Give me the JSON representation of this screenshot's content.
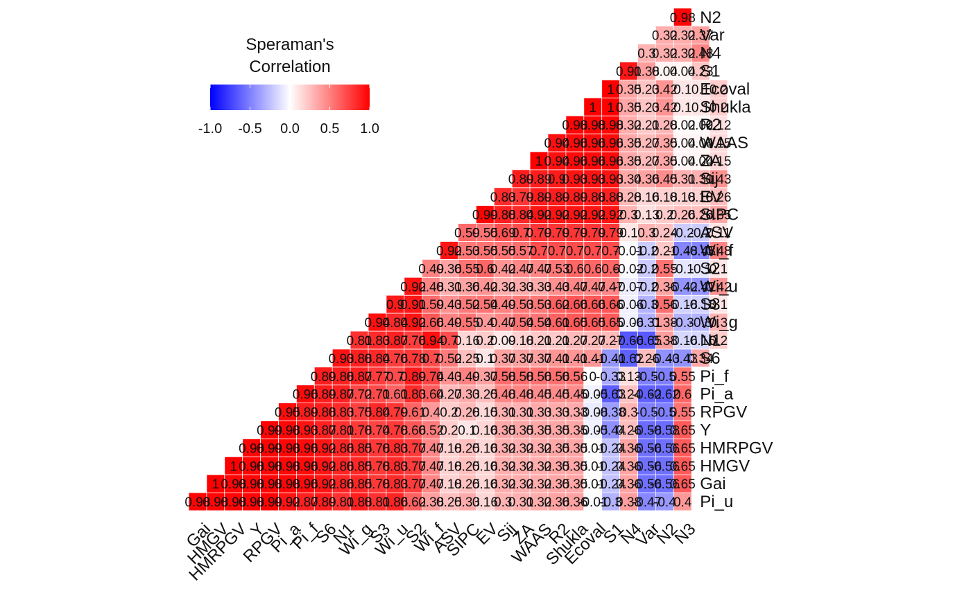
{
  "chart_data": {
    "type": "heatmap",
    "title": "",
    "xlabel": "",
    "ylabel": "",
    "layout": "lower-triangle",
    "grid": false,
    "variables": [
      "Gai",
      "HMGV",
      "HMRPGV",
      "Y",
      "RPGV",
      "Pi_a",
      "Pi_f",
      "S6",
      "N1",
      "Wi_g",
      "S3",
      "Wi_u",
      "S2",
      "Wi_f",
      "ASV",
      "SIPC",
      "EV",
      "Sij",
      "ZA",
      "WAAS",
      "R2",
      "Shukla",
      "Ecoval",
      "S1",
      "N4",
      "Var",
      "N2",
      "N3"
    ],
    "x_tick_labels": [
      "Gai",
      "HMGV",
      "HMRPGV",
      "Y",
      "RPGV",
      "Pi_a",
      "Pi_f",
      "S6",
      "N1",
      "Wi_g",
      "S3",
      "Wi_u",
      "S2",
      "Wi_f",
      "ASV",
      "SIPC",
      "EV",
      "Sij",
      "ZA",
      "WAAS",
      "R2",
      "Shukla",
      "Ecoval",
      "S1",
      "N4",
      "Var",
      "N2",
      "N3"
    ],
    "y_tick_labels": [
      "Pi_u",
      "Gai",
      "HMGV",
      "HMRPGV",
      "Y",
      "RPGV",
      "Pi_a",
      "Pi_f",
      "S6",
      "N1",
      "Wi_g",
      "S3",
      "Wi_u",
      "S2",
      "Wi_f",
      "ASV",
      "SIPC",
      "EV",
      "Sij",
      "ZA",
      "WAAS",
      "R2",
      "Shukla",
      "Ecoval",
      "S1",
      "N4",
      "Var",
      "N2"
    ],
    "rows": {
      "Pi_u": [
        0.98,
        0.98,
        0.98,
        0.98,
        0.99,
        0.92,
        0.87,
        0.89,
        0.81,
        0.88,
        0.81,
        0.86,
        0.62,
        0.38,
        0.25,
        0.33,
        0.16,
        0.3,
        0.31,
        0.32,
        0.36,
        0.36,
        -0.01,
        -0.3,
        0.38,
        -0.47,
        -0.4,
        0.4
      ],
      "Gai": [
        1,
        0.98,
        0.98,
        0.98,
        0.98,
        0.96,
        0.92,
        0.86,
        0.85,
        0.78,
        0.83,
        0.77,
        0.47,
        0.18,
        0.25,
        0.16,
        0.32,
        0.32,
        0.32,
        0.35,
        0.35,
        0.01,
        -0.24,
        0.36,
        -0.56,
        -0.56,
        0.65
      ],
      "HMGV": [
        1,
        0.98,
        0.98,
        0.98,
        0.96,
        0.92,
        0.86,
        0.85,
        0.78,
        0.83,
        0.77,
        0.47,
        0.18,
        0.25,
        0.16,
        0.32,
        0.32,
        0.32,
        0.35,
        0.35,
        0.01,
        -0.24,
        0.36,
        -0.56,
        -0.56,
        0.65
      ],
      "HMRPGV": [
        0.98,
        0.99,
        0.98,
        0.96,
        0.92,
        0.86,
        0.85,
        0.78,
        0.83,
        0.77,
        0.47,
        0.18,
        0.25,
        0.16,
        0.32,
        0.32,
        0.32,
        0.35,
        0.35,
        0.01,
        -0.24,
        0.36,
        -0.56,
        -0.56,
        0.65
      ],
      "Y": [
        0.99,
        0.98,
        0.93,
        0.87,
        0.81,
        0.78,
        0.74,
        0.78,
        0.66,
        0.52,
        0.2,
        0.1,
        0.16,
        0.35,
        0.35,
        0.35,
        0.35,
        0.35,
        -0.05,
        -0.44,
        0.26,
        -0.58,
        -0.58,
        0.65
      ],
      "RPGV": [
        0.95,
        0.89,
        0.88,
        0.83,
        0.75,
        0.84,
        0.79,
        0.61,
        0.4,
        0.2,
        0.28,
        0.15,
        0.31,
        0.31,
        0.33,
        0.33,
        0.33,
        -0.08,
        -0.38,
        0.3,
        -0.5,
        -0.5,
        0.55
      ],
      "Pi_a": [
        0.96,
        0.89,
        0.87,
        0.72,
        0.71,
        0.61,
        0.83,
        0.64,
        0.27,
        0.33,
        0.25,
        0.48,
        0.48,
        0.45,
        0.45,
        0.45,
        -0.05,
        -0.63,
        0.24,
        -0.62,
        -0.62,
        0.6
      ],
      "Pi_f": [
        0.89,
        0.88,
        0.87,
        0.77,
        0.7,
        0.89,
        0.74,
        0.43,
        0.49,
        0.37,
        0.58,
        0.58,
        0.56,
        0.56,
        0.56,
        0.0,
        -0.33,
        0.13,
        -0.5,
        -0.5,
        0.55
      ],
      "S6": [
        0.93,
        0.88,
        0.84,
        0.76,
        0.78,
        0.7,
        0.52,
        0.25,
        0.1,
        0.37,
        0.37,
        0.37,
        0.41,
        0.41,
        0.41,
        -0.41,
        -0.62,
        0.26,
        -0.43,
        -0.43,
        0.34
      ],
      "N1": [
        0.81,
        0.83,
        0.87,
        0.76,
        0.94,
        0.7,
        0.16,
        0.2,
        0.09,
        0.18,
        0.21,
        0.21,
        0.27,
        0.27,
        0.27,
        -0.66,
        -0.65,
        0.38,
        -0.16,
        -0.16,
        0.2
      ],
      "Wi_g": [
        0.94,
        0.84,
        0.92,
        0.66,
        0.49,
        0.55,
        0.4,
        0.47,
        0.54,
        0.54,
        0.61,
        0.65,
        0.65,
        0.65,
        -0.06,
        -0.31,
        0.38,
        -0.3,
        -0.3,
        0.3
      ],
      "S3": [
        0.9,
        0.91,
        0.59,
        0.43,
        0.52,
        0.54,
        0.49,
        0.53,
        0.53,
        0.62,
        0.66,
        0.66,
        0.66,
        -0.06,
        -0.3,
        0.56,
        -0.18,
        -0.18,
        0.1
      ],
      "Wi_u": [
        0.92,
        0.48,
        0.31,
        0.36,
        0.42,
        0.32,
        0.33,
        0.33,
        0.43,
        0.47,
        0.47,
        0.47,
        -0.07,
        -0.2,
        0.36,
        -0.42,
        -0.42,
        0.42
      ],
      "S2": [
        0.49,
        0.36,
        0.55,
        0.6,
        0.42,
        0.47,
        0.47,
        0.53,
        0.6,
        0.6,
        0.6,
        -0.02,
        -0.2,
        0.55,
        -0.1,
        -0.1,
        0.1
      ],
      "Wi_f": [
        0.92,
        0.53,
        0.55,
        0.55,
        0.57,
        0.7,
        0.7,
        0.7,
        0.7,
        0.7,
        -0.01,
        -0.2,
        0.21,
        -0.48,
        -0.48,
        0.48
      ],
      "ASV": [
        0.59,
        0.55,
        0.69,
        0.7,
        0.79,
        0.79,
        0.79,
        0.79,
        0.79,
        0.1,
        0.3,
        0.24,
        -0.2,
        -0.2,
        0.11
      ],
      "SIPC": [
        0.99,
        0.88,
        0.84,
        0.92,
        0.92,
        0.92,
        0.92,
        0.92,
        0.3,
        0.13,
        0.2,
        0.26,
        0.26,
        0.35
      ],
      "EV": [
        0.83,
        0.79,
        0.89,
        0.89,
        0.89,
        0.88,
        0.88,
        0.28,
        0.16,
        0.18,
        0.18,
        0.18,
        0.26
      ],
      "Sij": [
        0.89,
        0.89,
        0.9,
        0.93,
        0.93,
        0.93,
        0.34,
        0.36,
        0.45,
        0.31,
        0.31,
        0.43
      ],
      "ZA": [
        1,
        0.94,
        0.96,
        0.96,
        0.96,
        0.35,
        0.27,
        0.35,
        0.04,
        0.04,
        0.15
      ],
      "WAAS": [
        0.94,
        0.96,
        0.96,
        0.96,
        0.35,
        0.27,
        0.35,
        0.04,
        0.04,
        0.15
      ],
      "R2": [
        0.98,
        0.98,
        0.98,
        0.32,
        0.21,
        0.28,
        0.02,
        0.02,
        0.12
      ],
      "Shukla": [
        1,
        1,
        0.35,
        0.23,
        0.42,
        0.1,
        0.1,
        0.2
      ],
      "Ecoval": [
        1,
        0.35,
        0.23,
        0.42,
        0.1,
        0.1,
        0.2
      ],
      "S1": [
        0.91,
        0.38,
        0.04,
        0.04,
        0.23
      ],
      "N4": [
        0.3,
        0.32,
        0.32,
        0.48
      ],
      "Var": [
        0.32,
        0.32,
        0.37
      ],
      "N2": [
        0.98
      ]
    },
    "legend": {
      "title_line1": "Speraman's",
      "title_line2": "Correlation",
      "ticks": [
        "-1.0",
        "-0.5",
        "0.0",
        "0.5",
        "1.0"
      ],
      "range": [
        -1,
        1
      ],
      "placement": "top-left"
    },
    "colors": {
      "low": "#0000ff",
      "mid": "#ffffff",
      "high": "#ff0000",
      "cell_border": "#ffffff",
      "text": "#111111"
    }
  }
}
